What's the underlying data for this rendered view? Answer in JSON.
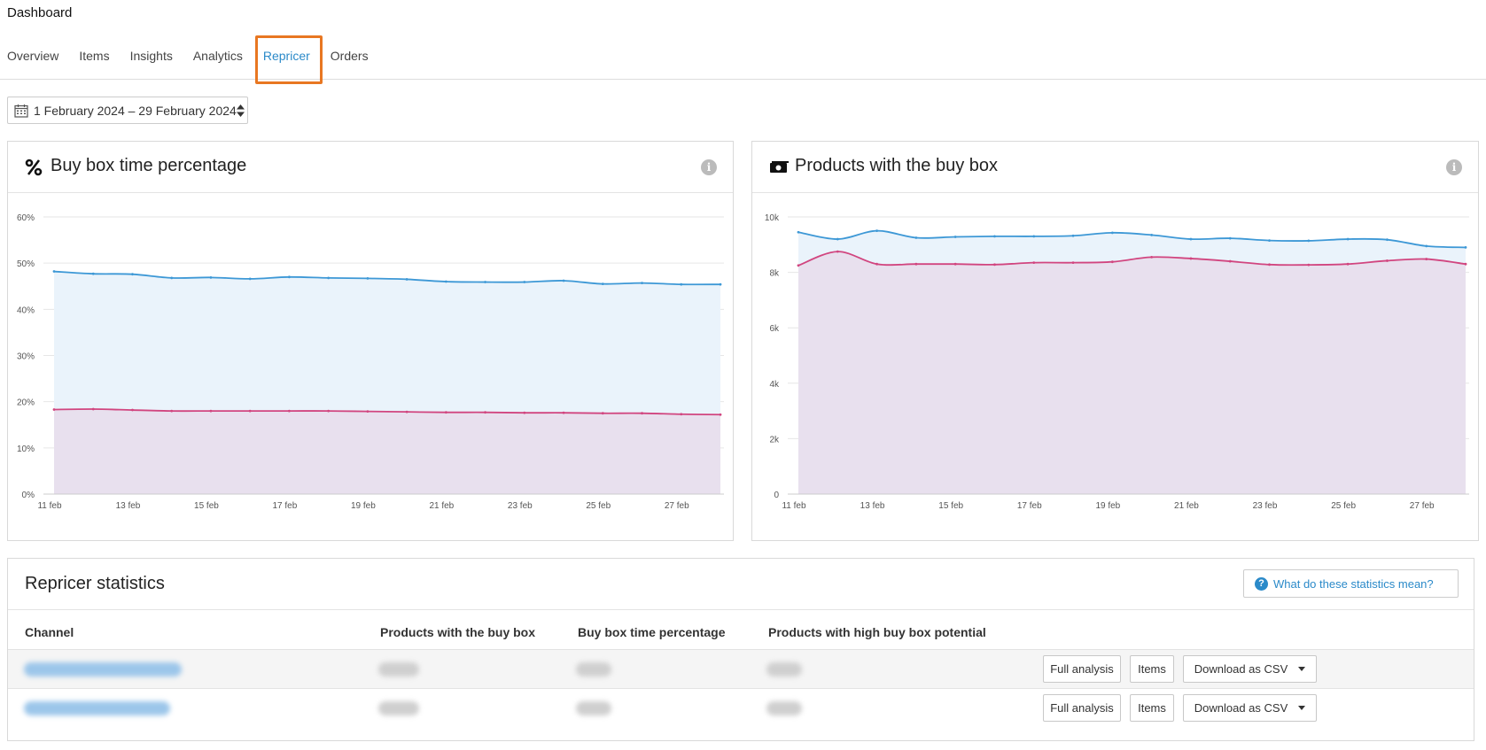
{
  "header": {
    "title": "Dashboard",
    "tabs": [
      {
        "label": "Overview"
      },
      {
        "label": "Items"
      },
      {
        "label": "Insights"
      },
      {
        "label": "Analytics"
      },
      {
        "label": "Repricer",
        "active": true
      },
      {
        "label": "Orders"
      }
    ]
  },
  "date_range": {
    "label": "1 February 2024 – 29 February 2024"
  },
  "colors": {
    "accent": "#2b8ac9",
    "highlight": "#e87722",
    "series_blue": "#3d98d6",
    "series_pink": "#d1457f"
  },
  "chart_data": [
    {
      "title": "Buy box time percentage",
      "icon": "percent-icon",
      "type": "area",
      "x": [
        "11 feb",
        "12 feb",
        "13 feb",
        "14 feb",
        "15 feb",
        "16 feb",
        "17 feb",
        "18 feb",
        "19 feb",
        "20 feb",
        "21 feb",
        "22 feb",
        "23 feb",
        "24 feb",
        "25 feb",
        "26 feb",
        "27 feb",
        "28 feb"
      ],
      "xticks": [
        "11 feb",
        "13 feb",
        "15 feb",
        "17 feb",
        "19 feb",
        "21 feb",
        "23 feb",
        "25 feb",
        "27 feb"
      ],
      "yticks": [
        "0%",
        "10%",
        "20%",
        "30%",
        "40%",
        "50%",
        "60%"
      ],
      "ylim": [
        0,
        60
      ],
      "grid": true,
      "series": [
        {
          "values": [
            48.2,
            47.7,
            47.6,
            46.8,
            46.9,
            46.6,
            47.0,
            46.8,
            46.7,
            46.5,
            46.0,
            45.9,
            45.9,
            46.2,
            45.5,
            45.7,
            45.4,
            45.4
          ]
        },
        {
          "values": [
            18.3,
            18.4,
            18.2,
            18.0,
            18.0,
            18.0,
            18.0,
            18.0,
            17.9,
            17.8,
            17.7,
            17.7,
            17.6,
            17.6,
            17.5,
            17.5,
            17.3,
            17.2
          ]
        }
      ]
    },
    {
      "title": "Products with the buy box",
      "icon": "money-icon",
      "type": "area",
      "x": [
        "11 feb",
        "12 feb",
        "13 feb",
        "14 feb",
        "15 feb",
        "16 feb",
        "17 feb",
        "18 feb",
        "19 feb",
        "20 feb",
        "21 feb",
        "22 feb",
        "23 feb",
        "24 feb",
        "25 feb",
        "26 feb",
        "27 feb",
        "28 feb"
      ],
      "xticks": [
        "11 feb",
        "13 feb",
        "15 feb",
        "17 feb",
        "19 feb",
        "21 feb",
        "23 feb",
        "25 feb",
        "27 feb"
      ],
      "yticks": [
        "0",
        "2k",
        "4k",
        "6k",
        "8k",
        "10k"
      ],
      "ylim": [
        0,
        10000
      ],
      "grid": true,
      "series": [
        {
          "values": [
            9450,
            9200,
            9500,
            9250,
            9280,
            9300,
            9300,
            9320,
            9430,
            9350,
            9200,
            9230,
            9150,
            9140,
            9200,
            9180,
            8950,
            8900
          ]
        },
        {
          "values": [
            8250,
            8750,
            8300,
            8300,
            8300,
            8280,
            8350,
            8350,
            8380,
            8550,
            8500,
            8400,
            8280,
            8270,
            8300,
            8420,
            8480,
            8300
          ]
        }
      ]
    }
  ],
  "stats": {
    "title": "Repricer statistics",
    "help_label": "What do these statistics mean?",
    "columns": [
      "Channel",
      "Products with the buy box",
      "Buy box time percentage",
      "Products with high buy box potential"
    ],
    "row_buttons": {
      "full_analysis": "Full analysis",
      "items": "Items",
      "download": "Download as CSV"
    }
  }
}
